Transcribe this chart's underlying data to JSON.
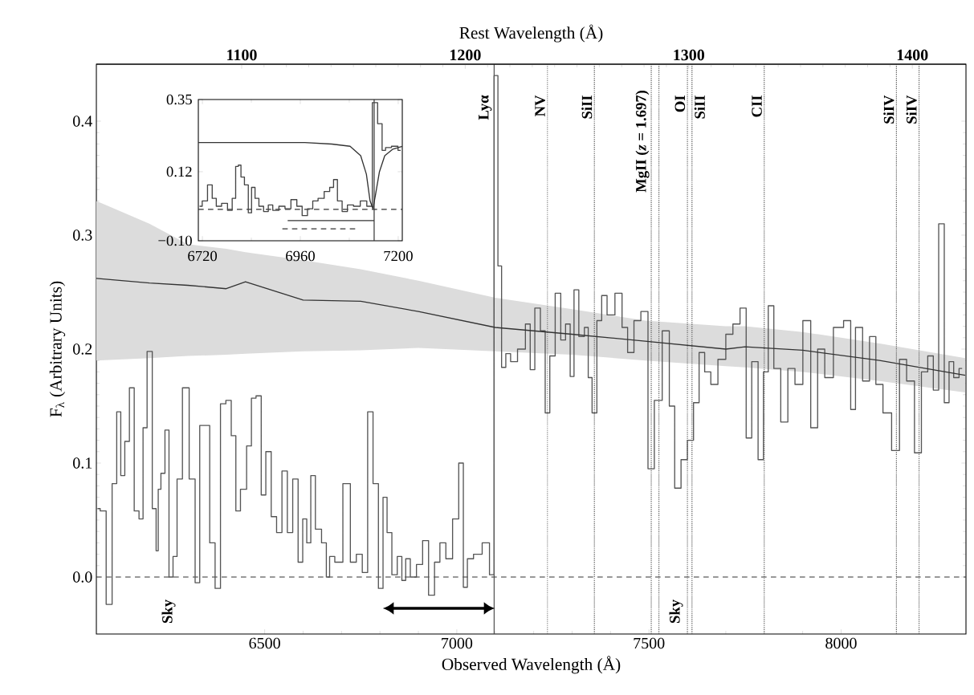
{
  "chart_data": [
    {
      "type": "step",
      "xlabel": "Observed Wavelength (Å)",
      "ylabel": "F$_{λ}$ (Arbitrary Units)",
      "x2label": "Rest Wavelength (Å)",
      "xlim": [
        6062,
        8325
      ],
      "ylim": [
        -0.05,
        0.45
      ],
      "xticks": [
        6500,
        7000,
        7500,
        8000
      ],
      "yticks": [
        {
          "value": 0,
          "label": "0.0"
        },
        0.1,
        0.2,
        0.3,
        0.4
      ],
      "x2lim": [
        1035,
        1424
      ],
      "x2ticks": [
        1100,
        1200,
        1300,
        1400
      ],
      "series": [
        {
          "color": "#555555",
          "x": [
            6065,
            6079,
            6096,
            6110,
            6120,
            6131,
            6141,
            6155,
            6166,
            6180,
            6187,
            6201,
            6214,
            6221,
            6225,
            6235,
            6246,
            6256,
            6267,
            6277,
            6295,
            6312,
            6326,
            6336,
            6350,
            6364,
            6378,
            6392,
            6406,
            6420,
            6430,
            6444,
            6462,
            6469,
            6486,
            6496,
            6510,
            6524,
            6538,
            6552,
            6566,
            6580,
            6594,
            6604,
            6615,
            6625,
            6639,
            6657,
            6664,
            6674,
            6691,
            6716,
            6730,
            6747,
            6761,
            6775,
            6789,
            6803,
            6813,
            6824,
            6838,
            6852,
            6862,
            6872,
            6886,
            6904,
            6918,
            6935,
            6949,
            6963,
            6980,
            6998,
            7012,
            7022,
            7033,
            7054,
            7078,
            7092,
            7102,
            7112,
            7121,
            7134,
            7146,
            7170,
            7187,
            7195,
            7211,
            7224,
            7236,
            7248,
            7264,
            7277,
            7289,
            7301,
            7309,
            7326,
            7338,
            7346,
            7358,
            7371,
            7383,
            7399,
            7424,
            7436,
            7453,
            7469,
            7489,
            7506,
            7522,
            7547,
            7559,
            7575,
            7592,
            7608,
            7624,
            7637,
            7653,
            7669,
            7690,
            7710,
            7727,
            7747,
            7759,
            7776,
            7792,
            7804,
            7817,
            7833,
            7853,
            7870,
            7890,
            7911,
            7931,
            7947,
            7968,
            7992,
            8021,
            8029,
            8046,
            8066,
            8082,
            8099,
            8119,
            8144,
            8160,
            8181,
            8201,
            8217,
            8234,
            8246,
            8262,
            8275,
            8287,
            8299,
            8315
          ],
          "values": [
            0.06,
            0.058,
            -0.024,
            0.082,
            0.145,
            0.089,
            0.119,
            0.166,
            0.058,
            0.051,
            0.131,
            0.198,
            0.06,
            0.023,
            0.077,
            0.091,
            0.129,
            0.0,
            0.018,
            0.086,
            0.166,
            0.086,
            -0.005,
            0.133,
            0.133,
            0.03,
            -0.01,
            0.152,
            0.155,
            0.124,
            0.058,
            0.077,
            0.115,
            0.157,
            0.159,
            0.072,
            0.11,
            0.053,
            0.039,
            0.093,
            0.039,
            0.086,
            0.013,
            0.051,
            0.03,
            0.089,
            0.042,
            0.03,
            0.0,
            0.018,
            0.013,
            0.082,
            0.013,
            0.02,
            0.004,
            0.145,
            0.082,
            -0.01,
            0.07,
            0.039,
            0.002,
            0.018,
            -0.003,
            0.016,
            0.0,
            0.011,
            0.032,
            -0.016,
            0.013,
            0.03,
            0.016,
            0.051,
            0.1,
            -0.009,
            0.016,
            0.02,
            0.03,
            0.002,
            0.44,
            0.273,
            0.184,
            0.196,
            0.189,
            0.2,
            0.222,
            0.182,
            0.236,
            0.216,
            0.144,
            0.194,
            0.249,
            0.208,
            0.222,
            0.176,
            0.252,
            0.211,
            0.219,
            0.175,
            0.144,
            0.225,
            0.247,
            0.23,
            0.249,
            0.219,
            0.197,
            0.225,
            0.233,
            0.095,
            0.155,
            0.216,
            0.15,
            0.078,
            0.103,
            0.12,
            0.153,
            0.197,
            0.18,
            0.169,
            0.191,
            0.213,
            0.222,
            0.236,
            0.122,
            0.189,
            0.103,
            0.18,
            0.238,
            0.183,
            0.136,
            0.183,
            0.169,
            0.225,
            0.131,
            0.2,
            0.175,
            0.219,
            0.225,
            0.147,
            0.219,
            0.172,
            0.211,
            0.169,
            0.144,
            0.111,
            0.191,
            0.172,
            0.109,
            0.18,
            0.194,
            0.164,
            0.31,
            0.153,
            0.189,
            0.175,
            0.183
          ]
        },
        {
          "type": "line",
          "color": "#333333",
          "x": [
            6062,
            6200,
            6300,
            6400,
            6450,
            6600,
            6750,
            6900,
            7100,
            7300,
            7490,
            7700,
            7750,
            7900,
            8100,
            8323
          ],
          "values": [
            0.262,
            0.258,
            0.256,
            0.253,
            0.259,
            0.243,
            0.242,
            0.233,
            0.219,
            0.213,
            0.207,
            0.2,
            0.202,
            0.199,
            0.19,
            0.177
          ],
          "lower": [
            0.19,
            0.192,
            0.194,
            0.195,
            0.196,
            0.198,
            0.199,
            0.201,
            0.198,
            0.195,
            0.19,
            0.185,
            0.184,
            0.18,
            0.172,
            0.162
          ],
          "upper": [
            0.33,
            0.31,
            0.292,
            0.288,
            0.285,
            0.278,
            0.27,
            0.26,
            0.245,
            0.235,
            0.225,
            0.22,
            0.22,
            0.215,
            0.205,
            0.192
          ]
        }
      ],
      "ref_lines": [
        {
          "axis": "y",
          "value": 0,
          "line_style": "dashed",
          "color": "#333333"
        },
        {
          "axis": "x",
          "value": 7097,
          "label": "Lyα",
          "line_style": "solid",
          "color": "#444444"
        },
        {
          "axis": "x",
          "value": 7236,
          "label": "NV",
          "line_style": "dotted",
          "color": "#555555"
        },
        {
          "axis": "x",
          "value": 7358,
          "label": "SiII",
          "line_style": "dotted",
          "color": "#555555"
        },
        {
          "axis": "x",
          "value": 7506,
          "line_style": "dotted",
          "color": "#555555"
        },
        {
          "axis": "x",
          "value": 7526,
          "line_style": "dotted",
          "color": "#555555"
        },
        {
          "axis": "x",
          "value": 7600,
          "label": "OI",
          "line_style": "dotted",
          "color": "#555555"
        },
        {
          "axis": "x",
          "value": 7612,
          "label": "SiII",
          "line_style": "dotted",
          "color": "#555555"
        },
        {
          "axis": "x",
          "value": 7800,
          "label": "CII",
          "line_style": "dotted",
          "color": "#555555"
        },
        {
          "axis": "x",
          "value": 8144,
          "label": "SiIV",
          "line_style": "dotted",
          "color": "#555555"
        },
        {
          "axis": "x",
          "value": 8203,
          "label": "SiIV",
          "line_style": "dotted",
          "color": "#555555"
        }
      ],
      "annotations": [
        "Sky",
        "Sky",
        "MgII (*z* = 1.697)"
      ]
    },
    {
      "type": "step",
      "xlim": [
        6710,
        7210
      ],
      "ylim": [
        -0.1,
        0.35
      ],
      "xticks": [
        6720,
        6960,
        7200
      ],
      "yticks": [
        {
          "value": -0.1,
          "label": "−0.10"
        },
        0.12,
        0.35
      ],
      "series": [
        {
          "color": "#444444",
          "x": [
            6713,
            6726,
            6739,
            6749,
            6759,
            6775,
            6788,
            6798,
            6805,
            6811,
            6818,
            6828,
            6837,
            6844,
            6854,
            6863,
            6877,
            6886,
            6899,
            6916,
            6929,
            6945,
            6958,
            6971,
            6984,
            6997,
            7010,
            7027,
            7037,
            7046,
            7056,
            7069,
            7082,
            7099,
            7115,
            7131,
            7142,
            7157,
            7164,
            7174,
            7193,
            7206
          ],
          "values": [
            0.01,
            0.027,
            0.078,
            0.035,
            0.01,
            0.019,
            -0.003,
            0.035,
            0.137,
            0.141,
            0.103,
            0.078,
            -0.011,
            0.07,
            0.035,
            0.01,
            -0.007,
            0.014,
            -0.003,
            0.01,
            0.002,
            0.031,
            0.01,
            -0.02,
            0.002,
            0.027,
            0.035,
            0.057,
            0.07,
            0.095,
            0.027,
            -0.007,
            0.014,
            0.01,
            0.027,
            0.01,
            0.34,
            0.273,
            0.188,
            0.197,
            0.201,
            0.188
          ]
        },
        {
          "type": "line",
          "color": "#333333",
          "x": [
            6710,
            6971,
            7037,
            7082,
            7108,
            7122,
            7131,
            7138,
            7144,
            7154,
            7167,
            7187,
            7210
          ],
          "values": [
            0.213,
            0.213,
            0.208,
            0.201,
            0.171,
            0.112,
            0.027,
            0.002,
            0.044,
            0.12,
            0.171,
            0.192,
            0.201
          ]
        },
        {
          "type": "line",
          "color": "#333333",
          "x": [
            6929,
            7141
          ],
          "values": [
            -0.036,
            -0.036
          ]
        },
        {
          "type": "line",
          "color": "#333333",
          "line_style": "dashed",
          "x": [
            6916,
            7096
          ],
          "values": [
            -0.062,
            -0.062
          ]
        }
      ],
      "ref_lines": [
        {
          "axis": "y",
          "value": 0,
          "line_style": "dashed",
          "color": "#333333"
        },
        {
          "axis": "x",
          "value": 7141,
          "line_style": "solid",
          "color": "#333333"
        }
      ]
    }
  ]
}
